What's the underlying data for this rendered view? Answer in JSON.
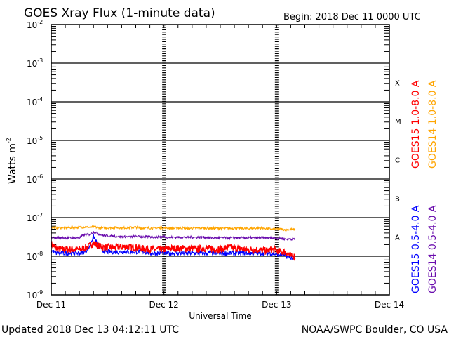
{
  "chart_data": {
    "type": "line",
    "title": "GOES Xray Flux (1-minute data)",
    "begin_label": "Begin:  2018 Dec 11 0000 UTC",
    "xlabel": "Universal Time",
    "ylabel": "Watts m",
    "ylabel_exp": "-2",
    "yscale": "log",
    "ylim": [
      1e-09,
      0.01
    ],
    "y_tick_exponents": [
      -2,
      -3,
      -4,
      -5,
      -6,
      -7,
      -8,
      -9
    ],
    "y_tick_base": "10",
    "x_unit": "hours since 2018 Dec 11 00:00 UTC",
    "xlim": [
      0,
      72
    ],
    "x_ticks": [
      {
        "value": 0,
        "label": "Dec 11"
      },
      {
        "value": 24,
        "label": "Dec 12"
      },
      {
        "value": 48,
        "label": "Dec 13"
      },
      {
        "value": 72,
        "label": "Dec 14"
      }
    ],
    "flare_classes": [
      {
        "label": "X",
        "exp": -4
      },
      {
        "label": "M",
        "exp": -5
      },
      {
        "label": "C",
        "exp": -6
      },
      {
        "label": "B",
        "exp": -7
      },
      {
        "label": "A",
        "exp": -8
      }
    ],
    "x": [
      0,
      1,
      2,
      3,
      4,
      5,
      6,
      7,
      8,
      9,
      10,
      11,
      12,
      13,
      14,
      15,
      16,
      17,
      18,
      19,
      20,
      21,
      22,
      23,
      24,
      25,
      26,
      27,
      28,
      29,
      30,
      31,
      32,
      33,
      34,
      35,
      36,
      37,
      38,
      39,
      40,
      41,
      42,
      43,
      44,
      45,
      46,
      47,
      48,
      49,
      50,
      51,
      52
    ],
    "series": [
      {
        "name": "GOES15 1.0-8.0 A",
        "color": "#ff0000",
        "values": [
          2.1e-08,
          1.6e-08,
          1.5e-08,
          1.5e-08,
          1.5e-08,
          1.5e-08,
          1.5e-08,
          1.6e-08,
          1.8e-08,
          2.2e-08,
          1.9e-08,
          1.7e-08,
          1.7e-08,
          1.7e-08,
          1.7e-08,
          1.7e-08,
          1.8e-08,
          1.7e-08,
          1.7e-08,
          1.6e-08,
          1.6e-08,
          1.5e-08,
          1.5e-08,
          1.5e-08,
          1.5e-08,
          1.6e-08,
          1.6e-08,
          1.6e-08,
          1.6e-08,
          1.6e-08,
          1.6e-08,
          1.5e-08,
          1.6e-08,
          1.6e-08,
          1.6e-08,
          1.5e-08,
          1.5e-08,
          1.6e-08,
          1.7e-08,
          1.6e-08,
          1.6e-08,
          1.5e-08,
          1.5e-08,
          1.5e-08,
          1.5e-08,
          1.4e-08,
          1.4e-08,
          1.5e-08,
          1.4e-08,
          1.3e-08,
          1.3e-08,
          1e-08,
          1e-08
        ]
      },
      {
        "name": "GOES14 1.0-8.0 A",
        "color": "#ffa500",
        "values": [
          5.6e-08,
          5.5e-08,
          5.4e-08,
          5.5e-08,
          5.5e-08,
          5.5e-08,
          5.6e-08,
          5.7e-08,
          5.6e-08,
          5.7e-08,
          5.5e-08,
          5.4e-08,
          5.4e-08,
          5.5e-08,
          5.5e-08,
          5.4e-08,
          5.5e-08,
          5.5e-08,
          5.6e-08,
          5.4e-08,
          5.4e-08,
          5.4e-08,
          5.3e-08,
          5.4e-08,
          5.4e-08,
          5.4e-08,
          5.3e-08,
          5.4e-08,
          5.4e-08,
          5.3e-08,
          5.3e-08,
          5.3e-08,
          5.4e-08,
          5.3e-08,
          5.3e-08,
          5.3e-08,
          5.3e-08,
          5.3e-08,
          5.3e-08,
          5.3e-08,
          5.3e-08,
          5.2e-08,
          5.2e-08,
          5.3e-08,
          5.3e-08,
          5.4e-08,
          5.2e-08,
          5e-08,
          5e-08,
          5e-08,
          4.9e-08,
          4.9e-08,
          4.9e-08
        ]
      },
      {
        "name": "GOES15 0.5-4.0 A",
        "color": "#0000ff",
        "values": [
          1.4e-08,
          1.2e-08,
          1.2e-08,
          1.2e-08,
          1.2e-08,
          1.2e-08,
          1.2e-08,
          1.3e-08,
          1.6e-08,
          3.2e-08,
          1.8e-08,
          1.4e-08,
          1.3e-08,
          1.3e-08,
          1.3e-08,
          1.3e-08,
          1.3e-08,
          1.3e-08,
          1.3e-08,
          1.3e-08,
          1.3e-08,
          1.2e-08,
          1.2e-08,
          1.2e-08,
          1.2e-08,
          1.2e-08,
          1.2e-08,
          1.2e-08,
          1.2e-08,
          1.2e-08,
          1.2e-08,
          1.2e-08,
          1.2e-08,
          1.2e-08,
          1.2e-08,
          1.2e-08,
          1.2e-08,
          1.2e-08,
          1.2e-08,
          1.2e-08,
          1.2e-08,
          1.2e-08,
          1.2e-08,
          1.2e-08,
          1.2e-08,
          1.2e-08,
          1.2e-08,
          1.2e-08,
          1.1e-08,
          1.1e-08,
          1e-08,
          9e-09,
          9e-09
        ]
      },
      {
        "name": "GOES14 0.5-4.0 A",
        "color": "#6a0dad",
        "values": [
          3e-08,
          3e-08,
          3e-08,
          3e-08,
          3e-08,
          3e-08,
          3e-08,
          3.6e-08,
          3.6e-08,
          4.3e-08,
          3.8e-08,
          3.5e-08,
          3.4e-08,
          3.3e-08,
          3.3e-08,
          3.2e-08,
          3.2e-08,
          3.2e-08,
          3.3e-08,
          3.2e-08,
          3.2e-08,
          3.2e-08,
          3.1e-08,
          3.2e-08,
          3.2e-08,
          3.1e-08,
          3.1e-08,
          3.1e-08,
          3.1e-08,
          3.1e-08,
          3.1e-08,
          3.1e-08,
          3.1e-08,
          3.1e-08,
          3e-08,
          3e-08,
          3e-08,
          3e-08,
          3e-08,
          3e-08,
          3e-08,
          3e-08,
          3e-08,
          3e-08,
          3e-08,
          3e-08,
          3e-08,
          3e-08,
          2.9e-08,
          2.9e-08,
          2.8e-08,
          2.8e-08,
          2.8e-08
        ]
      }
    ],
    "legend_placement": "right, rotated"
  },
  "footer": {
    "updated": "Updated 2018 Dec 13 04:12:11 UTC",
    "credit": "NOAA/SWPC Boulder, CO USA"
  }
}
